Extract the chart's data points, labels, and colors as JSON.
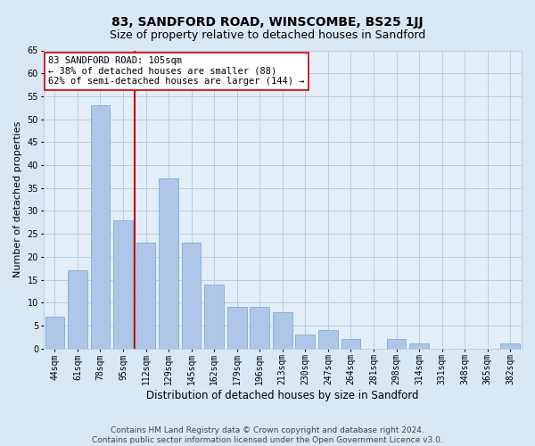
{
  "title": "83, SANDFORD ROAD, WINSCOMBE, BS25 1JJ",
  "subtitle": "Size of property relative to detached houses in Sandford",
  "xlabel": "Distribution of detached houses by size in Sandford",
  "ylabel": "Number of detached properties",
  "categories": [
    "44sqm",
    "61sqm",
    "78sqm",
    "95sqm",
    "112sqm",
    "129sqm",
    "145sqm",
    "162sqm",
    "179sqm",
    "196sqm",
    "213sqm",
    "230sqm",
    "247sqm",
    "264sqm",
    "281sqm",
    "298sqm",
    "314sqm",
    "331sqm",
    "348sqm",
    "365sqm",
    "382sqm"
  ],
  "values": [
    7,
    17,
    53,
    28,
    23,
    37,
    23,
    14,
    9,
    9,
    8,
    3,
    4,
    2,
    0,
    2,
    1,
    0,
    0,
    0,
    1
  ],
  "bar_color": "#aec6e8",
  "bar_edge_color": "#7bafd4",
  "vline_pos": 3.5,
  "vline_color": "#cc0000",
  "annotation_text": "83 SANDFORD ROAD: 105sqm\n← 38% of detached houses are smaller (88)\n62% of semi-detached houses are larger (144) →",
  "annotation_box_color": "#ffffff",
  "annotation_box_edge_color": "#cc0000",
  "ylim": [
    0,
    65
  ],
  "yticks": [
    0,
    5,
    10,
    15,
    20,
    25,
    30,
    35,
    40,
    45,
    50,
    55,
    60,
    65
  ],
  "grid_color": "#b8cfe0",
  "bg_color": "#dae8f4",
  "plot_bg_color": "#e4eef8",
  "footer": "Contains HM Land Registry data © Crown copyright and database right 2024.\nContains public sector information licensed under the Open Government Licence v3.0.",
  "title_fontsize": 10,
  "subtitle_fontsize": 9,
  "ylabel_fontsize": 8,
  "xlabel_fontsize": 8.5,
  "tick_fontsize": 7,
  "annotation_fontsize": 7.5,
  "footer_fontsize": 6.5
}
